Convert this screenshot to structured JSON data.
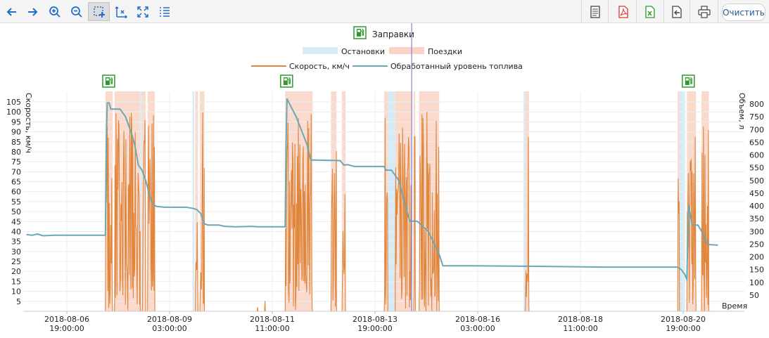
{
  "toolbar": {
    "clear_label": "Очистить",
    "left_icons": [
      "arrow-left-icon",
      "arrow-right-icon",
      "zoom-in-icon",
      "zoom-out-icon",
      "box-zoom-icon",
      "axis-zoom-icon",
      "zoom-reset-icon",
      "legend-list-icon"
    ],
    "right_icons": [
      "document-icon",
      "pdf-export-icon",
      "excel-export-icon",
      "import-icon",
      "print-icon"
    ]
  },
  "colors": {
    "speed": "#e0853a",
    "fuel": "#6aa8b4",
    "stops": "#d6ebf6",
    "trips": "#fad3c6",
    "refuel": "#2e9a2e",
    "cursor": "#8a7fd8"
  },
  "legend": {
    "refuel_label": "Заправки",
    "stops_label": "Остановки",
    "trips_label": "Поездки",
    "speed_label": "Скорость, км/ч",
    "fuel_label": "Обработанный уровень топлива"
  },
  "chart_data": {
    "type": "line",
    "x_axis": {
      "label": "Время",
      "ticks": [
        {
          "date": "2018-08-06",
          "time": "19:00:00"
        },
        {
          "date": "2018-08-09",
          "time": "03:00:00"
        },
        {
          "date": "2018-08-11",
          "time": "11:00:00"
        },
        {
          "date": "2018-08-13",
          "time": "19:00:00"
        },
        {
          "date": "2018-08-16",
          "time": "03:00:00"
        },
        {
          "date": "2018-08-18",
          "time": "11:00:00"
        },
        {
          "date": "2018-08-20",
          "time": "19:00:00"
        }
      ]
    },
    "y_left": {
      "label": "Скорость, км/ч",
      "ticks": [
        5,
        10,
        15,
        20,
        25,
        30,
        35,
        40,
        45,
        50,
        55,
        60,
        65,
        70,
        75,
        80,
        85,
        90,
        95,
        100,
        105
      ]
    },
    "y_right": {
      "label": "Объем, л",
      "ticks": [
        50,
        100,
        150,
        200,
        250,
        300,
        350,
        400,
        450,
        500,
        550,
        600,
        650,
        700,
        750,
        800
      ]
    },
    "grid": true,
    "refuel_times": [
      "2018-08-07 18:00",
      "2018-08-11 19:00",
      "2018-08-20 22:00"
    ],
    "cursor_time": "2018-08-14 15:00",
    "fuel_series": {
      "name": "Обработанный уровень топлива",
      "points": [
        [
          "2018-08-05 21:00",
          288
        ],
        [
          "2018-08-06 00:00",
          285
        ],
        [
          "2018-08-06 03:00",
          290
        ],
        [
          "2018-08-06 06:00",
          283
        ],
        [
          "2018-08-06 12:00",
          285
        ],
        [
          "2018-08-07 16:00",
          285
        ],
        [
          "2018-08-07 16:30",
          660
        ],
        [
          "2018-08-07 17:00",
          805
        ],
        [
          "2018-08-07 18:00",
          805
        ],
        [
          "2018-08-07 19:00",
          780
        ],
        [
          "2018-08-08 00:00",
          780
        ],
        [
          "2018-08-08 03:00",
          750
        ],
        [
          "2018-08-08 06:00",
          690
        ],
        [
          "2018-08-08 08:00",
          640
        ],
        [
          "2018-08-08 10:00",
          560
        ],
        [
          "2018-08-08 12:00",
          540
        ],
        [
          "2018-08-08 14:00",
          500
        ],
        [
          "2018-08-08 16:00",
          445
        ],
        [
          "2018-08-08 18:00",
          405
        ],
        [
          "2018-08-08 20:00",
          398
        ],
        [
          "2018-08-09 00:00",
          395
        ],
        [
          "2018-08-09 06:00",
          395
        ],
        [
          "2018-08-09 12:00",
          395
        ],
        [
          "2018-08-09 16:00",
          390
        ],
        [
          "2018-08-09 18:00",
          385
        ],
        [
          "2018-08-09 20:00",
          370
        ],
        [
          "2018-08-09 22:00",
          330
        ],
        [
          "2018-08-10 00:00",
          325
        ],
        [
          "2018-08-10 06:00",
          325
        ],
        [
          "2018-08-10 09:00",
          320
        ],
        [
          "2018-08-10 15:00",
          318
        ],
        [
          "2018-08-11 00:00",
          320
        ],
        [
          "2018-08-11 03:00",
          318
        ],
        [
          "2018-08-11 18:00",
          318
        ],
        [
          "2018-08-11 18:30",
          650
        ],
        [
          "2018-08-11 19:00",
          820
        ],
        [
          "2018-08-12 00:00",
          750
        ],
        [
          "2018-08-12 06:00",
          640
        ],
        [
          "2018-08-12 08:00",
          580
        ],
        [
          "2018-08-12 10:00",
          580
        ],
        [
          "2018-08-13 00:00",
          578
        ],
        [
          "2018-08-13 02:00",
          560
        ],
        [
          "2018-08-13 04:00",
          562
        ],
        [
          "2018-08-13 08:00",
          555
        ],
        [
          "2018-08-13 12:00",
          555
        ],
        [
          "2018-08-13 20:00",
          555
        ],
        [
          "2018-08-14 00:00",
          555
        ],
        [
          "2018-08-14 01:00",
          540
        ],
        [
          "2018-08-14 04:00",
          540
        ],
        [
          "2018-08-14 08:00",
          500
        ],
        [
          "2018-08-14 12:00",
          390
        ],
        [
          "2018-08-14 14:00",
          340
        ],
        [
          "2018-08-14 16:00",
          340
        ],
        [
          "2018-08-14 18:00",
          340
        ],
        [
          "2018-08-15 00:00",
          300
        ],
        [
          "2018-08-15 06:00",
          210
        ],
        [
          "2018-08-15 08:00",
          165
        ],
        [
          "2018-08-16 00:00",
          165
        ],
        [
          "2018-08-17 00:00",
          164
        ],
        [
          "2018-08-18 00:00",
          162
        ],
        [
          "2018-08-19 00:00",
          160
        ],
        [
          "2018-08-20 00:00",
          160
        ],
        [
          "2018-08-20 16:00",
          160
        ],
        [
          "2018-08-20 18:00",
          150
        ],
        [
          "2018-08-20 20:00",
          130
        ],
        [
          "2018-08-20 21:00",
          110
        ],
        [
          "2018-08-20 22:00",
          400
        ],
        [
          "2018-08-21 00:00",
          325
        ],
        [
          "2018-08-21 03:00",
          325
        ],
        [
          "2018-08-21 06:00",
          290
        ],
        [
          "2018-08-21 08:00",
          250
        ],
        [
          "2018-08-21 10:00",
          248
        ],
        [
          "2018-08-21 14:00",
          246
        ]
      ]
    },
    "speed_series": {
      "name": "Скорость, км/ч",
      "peak_max": 105,
      "trip_intervals": [
        [
          "2018-08-07 16:00",
          "2018-08-07 20:00"
        ],
        [
          "2018-08-07 21:00",
          "2018-08-08 11:00"
        ],
        [
          "2018-08-08 12:00",
          "2018-08-08 14:00"
        ],
        [
          "2018-08-08 15:00",
          "2018-08-08 19:00"
        ],
        [
          "2018-08-09 17:00",
          "2018-08-09 18:30"
        ],
        [
          "2018-08-09 19:30",
          "2018-08-09 22:00"
        ],
        [
          "2018-08-11 18:00",
          "2018-08-12 09:00"
        ],
        [
          "2018-08-12 19:00",
          "2018-08-12 22:00"
        ],
        [
          "2018-08-13 01:00",
          "2018-08-13 03:00"
        ],
        [
          "2018-08-14 00:00",
          "2018-08-14 02:00"
        ],
        [
          "2018-08-14 06:00",
          "2018-08-14 15:00"
        ],
        [
          "2018-08-14 16:00",
          "2018-08-14 17:00"
        ],
        [
          "2018-08-14 19:00",
          "2018-08-15 06:00"
        ],
        [
          "2018-08-17 05:00",
          "2018-08-17 07:00"
        ],
        [
          "2018-08-20 16:00",
          "2018-08-20 17:00"
        ],
        [
          "2018-08-20 21:00",
          "2018-08-21 02:00"
        ],
        [
          "2018-08-21 05:00",
          "2018-08-21 09:00"
        ]
      ],
      "stop_intervals": [
        [
          "2018-08-08 11:00",
          "2018-08-08 12:00"
        ],
        [
          "2018-08-09 15:30",
          "2018-08-09 16:30"
        ],
        [
          "2018-08-14 02:00",
          "2018-08-14 06:00"
        ],
        [
          "2018-08-17 04:00",
          "2018-08-17 05:00"
        ],
        [
          "2018-08-20 17:00",
          "2018-08-20 20:00"
        ]
      ],
      "isolated_spikes": [
        [
          "2018-08-11 03:00",
          2
        ],
        [
          "2018-08-11 07:00",
          5
        ]
      ]
    }
  }
}
